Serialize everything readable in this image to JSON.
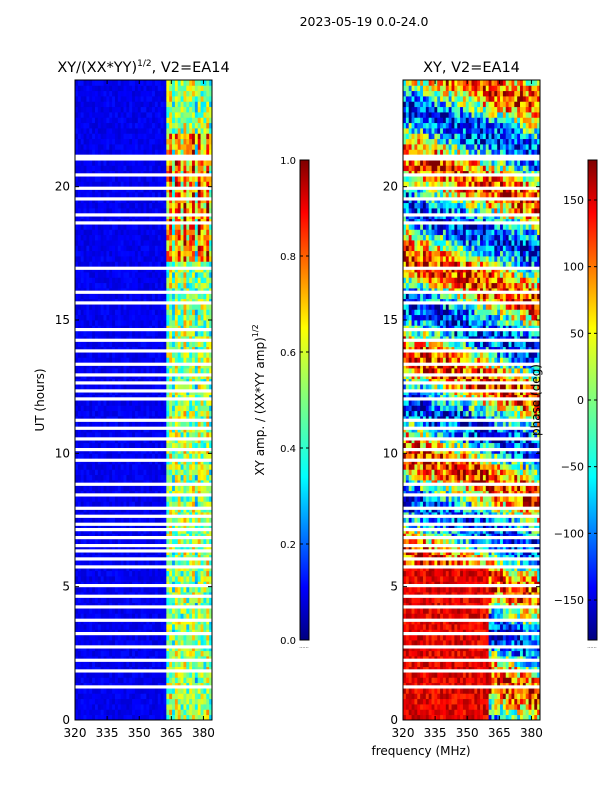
{
  "figure": {
    "suptitle": "2023-05-19 0.0-24.0",
    "shared_xlabel": "frequency (MHz)"
  },
  "chart_data": [
    {
      "type": "heatmap",
      "title_base": "XY/(XX*YY)",
      "title_exp": "1/2",
      "title_tail": ", V2=EA14",
      "ylabel": "UT (hours)",
      "xlim": [
        320,
        384
      ],
      "ylim": [
        0,
        24
      ],
      "xticks": [
        320,
        335,
        350,
        365,
        380
      ],
      "yticks": [
        0,
        5,
        10,
        15,
        20
      ],
      "colorbar": {
        "label_base": "XY amp. / (XX*YY amp)",
        "label_exp": "1/2",
        "range": [
          0.0,
          1.0
        ],
        "ticks": [
          "0.0",
          "0.2",
          "0.4",
          "0.6",
          "0.8",
          "1.0"
        ],
        "offset_text": "......"
      },
      "description_note": "amplitude mostly low (~0.05) over 320-362 MHz; elevated (0.3-0.9) over 362-384 MHz, peaking near 18-22 UT",
      "blank_rows_ut": [
        21.1,
        21.0,
        20.4,
        19.9,
        19.5,
        18.9,
        18.6,
        16.9,
        16.0,
        15.6,
        14.6,
        14.2,
        13.8,
        13.3,
        12.9,
        12.6,
        12.3,
        12.0,
        11.2,
        10.9,
        10.5,
        10.1,
        9.7,
        8.8,
        8.4,
        7.9,
        7.6,
        7.3,
        7.1,
        6.8,
        6.5,
        6.3,
        6.0,
        5.7,
        5.0,
        4.6,
        4.2,
        3.7,
        3.2,
        2.7,
        2.2,
        1.8,
        1.2
      ]
    },
    {
      "type": "heatmap",
      "title": "XY, V2=EA14",
      "xlim": [
        320,
        384
      ],
      "ylim": [
        0,
        24
      ],
      "xticks": [
        320,
        335,
        350,
        365,
        380
      ],
      "yticks": [
        0,
        5,
        10,
        15,
        20
      ],
      "colorbar": {
        "label": "phase (deg)",
        "range": [
          -180,
          180
        ],
        "ticks": [
          "−150",
          "−100",
          "−50",
          "0",
          "50",
          "100",
          "150"
        ],
        "tick_values": [
          -150,
          -100,
          -50,
          0,
          50,
          100,
          150
        ],
        "offset_text": "......"
      },
      "description_note": "XY phase noisy across band; predominantly ~+150 deg (red) between 0 and 5.7 UT at 320-360 MHz, mixed elsewhere",
      "blank_rows_ut": [
        21.1,
        21.0,
        20.4,
        19.9,
        19.5,
        18.9,
        18.6,
        16.9,
        16.0,
        15.6,
        14.6,
        14.2,
        13.8,
        13.3,
        12.9,
        12.6,
        12.3,
        12.0,
        11.2,
        10.9,
        10.5,
        10.1,
        9.7,
        8.8,
        8.4,
        7.9,
        7.6,
        7.3,
        7.1,
        6.8,
        6.5,
        6.3,
        6.0,
        5.7,
        5.0,
        4.6,
        4.2,
        3.7,
        3.2,
        2.7,
        2.2,
        1.8,
        1.2
      ]
    }
  ],
  "colors": {
    "jet": [
      "#00007f",
      "#0000ff",
      "#007fff",
      "#00ffff",
      "#7fff7f",
      "#ffff00",
      "#ff7f00",
      "#ff0000",
      "#7f0000"
    ]
  }
}
